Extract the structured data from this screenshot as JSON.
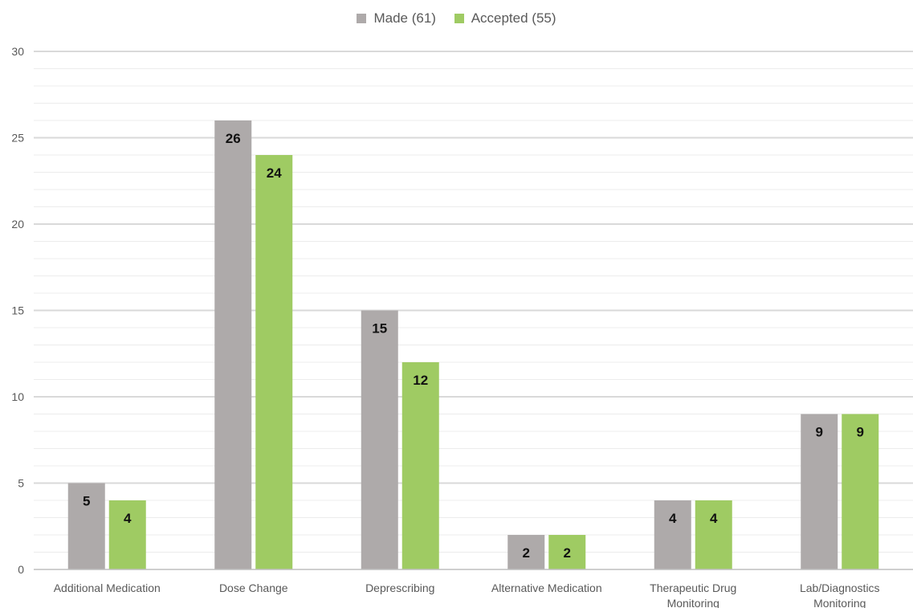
{
  "chart_data": {
    "type": "bar",
    "categories": [
      "Additional Medication",
      "Dose Change",
      "Deprescribing",
      "Alternative Medication",
      "Therapeutic Drug Monitoring",
      "Lab/Diagnostics Monitoring"
    ],
    "series": [
      {
        "name": "Made (61)",
        "values": [
          5,
          26,
          15,
          2,
          4,
          9
        ],
        "color": "#aeaaaa"
      },
      {
        "name": "Accepted (55)",
        "values": [
          4,
          24,
          12,
          2,
          4,
          9
        ],
        "color": "#9fcb63"
      }
    ],
    "ylim": [
      0,
      30
    ],
    "yticks": [
      0,
      5,
      10,
      15,
      20,
      25,
      30
    ],
    "grid": true,
    "legend": "top-center",
    "data_labels": true
  }
}
